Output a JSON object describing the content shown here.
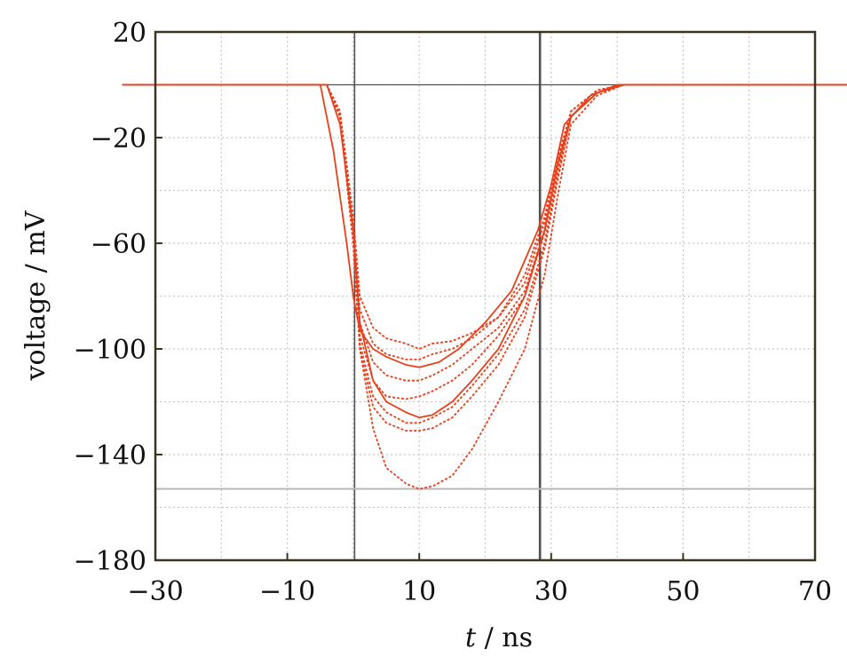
{
  "chart_data": {
    "type": "line",
    "xlabel_italic": "t",
    "xlabel_rest": " / ns",
    "ylabel": "voltage / mV",
    "xlim": [
      -30,
      70
    ],
    "ylim": [
      -180,
      20
    ],
    "x_ticks": [
      -30,
      -10,
      10,
      30,
      50,
      70
    ],
    "x_tick_labels": [
      "−30",
      "−10",
      "10",
      "30",
      "50",
      "70"
    ],
    "y_ticks": [
      20,
      -20,
      -60,
      -100,
      -140,
      -180
    ],
    "y_tick_labels": [
      "20",
      "−20",
      "−60",
      "−100",
      "−140",
      "−180"
    ],
    "grid": true,
    "colors": {
      "trace": "#e8401c",
      "frame": "#3a3520",
      "grid": "#c8c8c8",
      "cursor_dark": "#505050",
      "cursor_light": "#b8b8b8"
    },
    "cursors": {
      "vertical": [
        0.2,
        28.3
      ],
      "horizontal": [
        0,
        -153
      ]
    },
    "series": [
      {
        "style": "solid",
        "x": [
          -35,
          -5,
          -3,
          -1,
          0,
          1,
          3,
          5,
          8,
          10,
          13,
          16,
          20,
          24,
          28,
          30,
          32,
          36,
          40,
          75
        ],
        "y": [
          0,
          0,
          -25,
          -60,
          -80,
          -93,
          -100,
          -103,
          -106,
          -107,
          -105,
          -100,
          -90,
          -78,
          -55,
          -38,
          -15,
          -4,
          0,
          0
        ]
      },
      {
        "style": "solid",
        "x": [
          -35,
          -4,
          -2,
          0,
          1,
          3,
          5,
          8,
          10,
          12,
          15,
          18,
          22,
          26,
          29,
          31,
          33,
          37,
          41,
          75
        ],
        "y": [
          0,
          0,
          -15,
          -55,
          -90,
          -112,
          -120,
          -124,
          -126,
          -125,
          -120,
          -112,
          -100,
          -80,
          -55,
          -30,
          -12,
          -3,
          0,
          0
        ]
      },
      {
        "style": "dashed",
        "x": [
          -35,
          -4,
          -2,
          0,
          1,
          3,
          5,
          8,
          10,
          12,
          15,
          18,
          22,
          26,
          29,
          31,
          33,
          37,
          41,
          75
        ],
        "y": [
          0,
          0,
          -10,
          -50,
          -80,
          -92,
          -96,
          -98,
          -100,
          -98,
          -97,
          -94,
          -88,
          -75,
          -52,
          -30,
          -10,
          -2,
          0,
          0
        ]
      },
      {
        "style": "dashed",
        "x": [
          -35,
          -4,
          -2,
          0,
          1,
          3,
          5,
          8,
          10,
          12,
          15,
          18,
          22,
          26,
          29,
          31,
          33,
          37,
          41,
          75
        ],
        "y": [
          0,
          0,
          -12,
          -55,
          -85,
          -98,
          -102,
          -104,
          -104,
          -102,
          -100,
          -96,
          -88,
          -72,
          -50,
          -28,
          -10,
          -2,
          0,
          0
        ]
      },
      {
        "style": "dashed",
        "x": [
          -35,
          -4,
          -2,
          0,
          1,
          3,
          5,
          8,
          10,
          12,
          15,
          18,
          22,
          26,
          29,
          31,
          33,
          37,
          41,
          75
        ],
        "y": [
          0,
          0,
          -12,
          -58,
          -90,
          -105,
          -110,
          -112,
          -112,
          -110,
          -106,
          -100,
          -92,
          -78,
          -55,
          -30,
          -12,
          -3,
          0,
          0
        ]
      },
      {
        "style": "dashed",
        "x": [
          -35,
          -4,
          -2,
          0,
          1,
          3,
          5,
          8,
          10,
          12,
          15,
          18,
          22,
          26,
          29,
          31,
          33,
          37,
          41,
          75
        ],
        "y": [
          0,
          0,
          -12,
          -58,
          -95,
          -112,
          -118,
          -119,
          -118,
          -116,
          -112,
          -106,
          -95,
          -80,
          -56,
          -32,
          -12,
          -3,
          0,
          0
        ]
      },
      {
        "style": "dashed",
        "x": [
          -35,
          -4,
          -2,
          0,
          1,
          3,
          5,
          8,
          10,
          12,
          15,
          18,
          22,
          26,
          29,
          31,
          33,
          37,
          41,
          75
        ],
        "y": [
          0,
          0,
          -12,
          -60,
          -98,
          -118,
          -124,
          -128,
          -128,
          -126,
          -122,
          -114,
          -102,
          -85,
          -60,
          -34,
          -12,
          -3,
          0,
          0
        ]
      },
      {
        "style": "dashed",
        "x": [
          -35,
          -4,
          -2,
          0,
          1,
          3,
          5,
          8,
          10,
          12,
          15,
          18,
          22,
          26,
          29,
          31,
          33,
          37,
          41,
          75
        ],
        "y": [
          0,
          0,
          -12,
          -60,
          -100,
          -122,
          -128,
          -131,
          -131,
          -130,
          -126,
          -118,
          -106,
          -88,
          -62,
          -36,
          -12,
          -3,
          0,
          0
        ]
      },
      {
        "style": "dashed",
        "x": [
          -35,
          -4,
          -2,
          0,
          1,
          3,
          5,
          8,
          10,
          12,
          15,
          18,
          22,
          26,
          29,
          31,
          33,
          37,
          41,
          75
        ],
        "y": [
          0,
          0,
          -12,
          -60,
          -100,
          -130,
          -145,
          -151,
          -153,
          -152,
          -148,
          -138,
          -120,
          -100,
          -72,
          -42,
          -15,
          -4,
          0,
          0
        ]
      }
    ]
  }
}
